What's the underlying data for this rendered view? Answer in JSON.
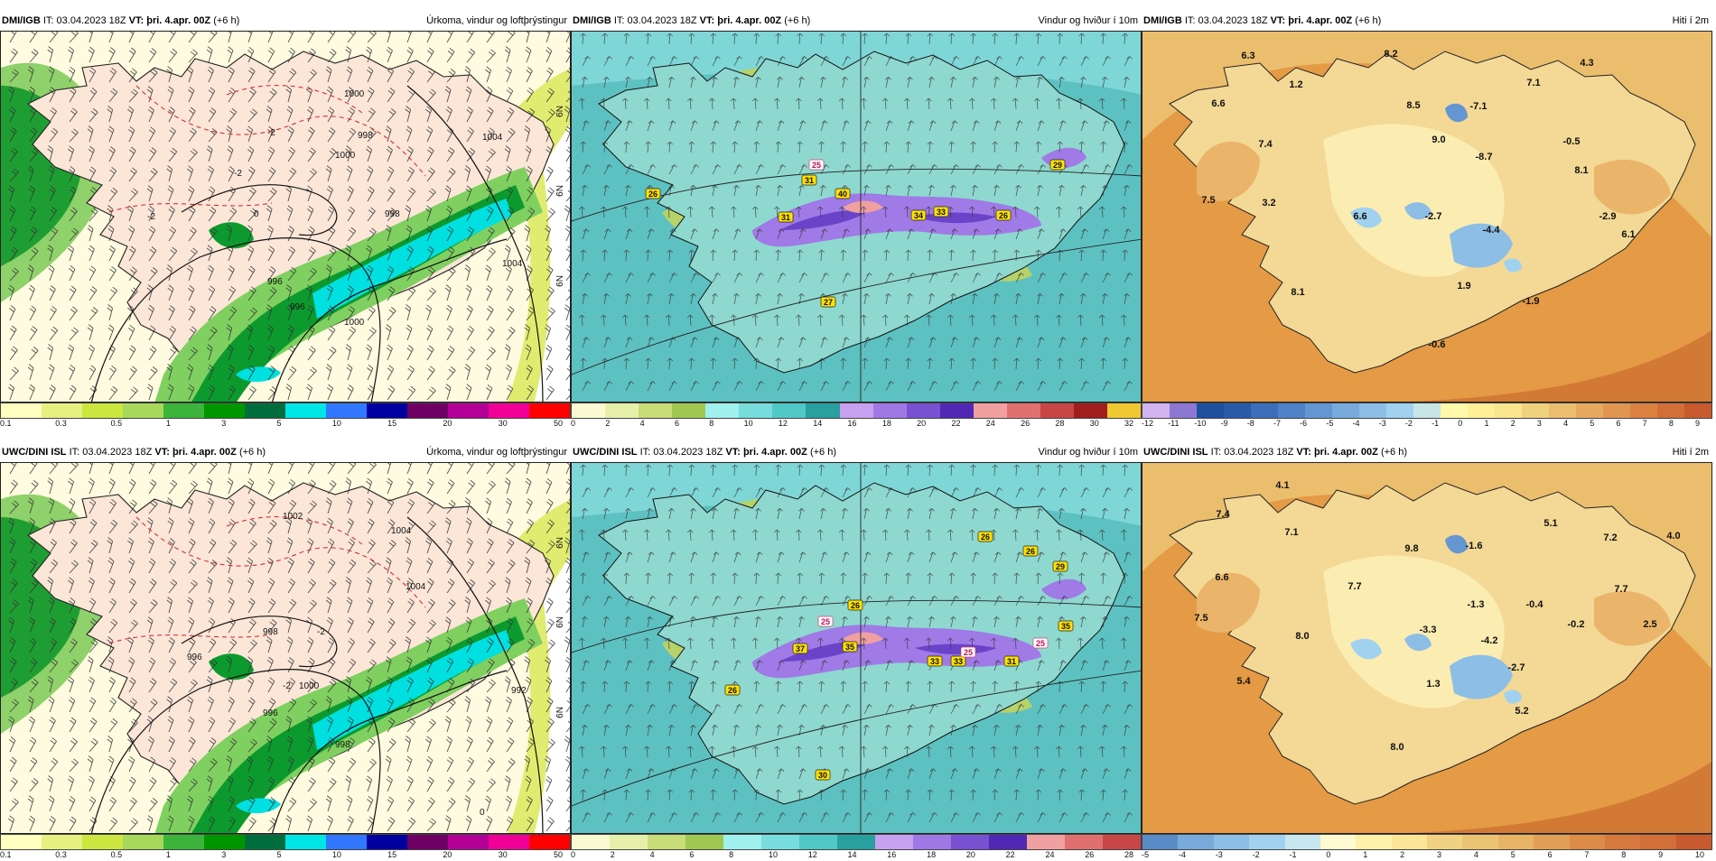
{
  "rows": [
    {
      "panels": [
        {
          "model": "DMI/IGB",
          "it_label": "IT:",
          "it_time": "03.04.2023 18Z",
          "vt_label": "VT:",
          "vt_time": "þri. 4.apr. 00Z",
          "lead": "(+6 h)",
          "title": "Úrkoma, vindur og loftþrýstingur",
          "type": "precip",
          "isobars": [
            "1000",
            "998",
            "998",
            "1000",
            "1004",
            "996",
            "996",
            "1000",
            "1004"
          ],
          "temp_contours": [
            "-2",
            "-2",
            "-2",
            "0"
          ],
          "edge_labels": [
            "N9",
            "N9",
            "N9"
          ],
          "colorbar": {
            "colors": [
              "#ffffc0",
              "#e6f080",
              "#cce640",
              "#a8d85a",
              "#3cb43c",
              "#009600",
              "#006e3c",
              "#00e6e6",
              "#3278ff",
              "#0000a0",
              "#6e0064",
              "#b40096",
              "#f00096",
              "#ff0000"
            ],
            "ticks": [
              "0.1",
              "0.3",
              "0.5",
              "1",
              "3",
              "5",
              "10",
              "15",
              "20",
              "30",
              "50"
            ]
          }
        },
        {
          "model": "DMI/IGB",
          "it_label": "IT:",
          "it_time": "03.04.2023 18Z",
          "vt_label": "VT:",
          "vt_time": "þri. 4.apr. 00Z",
          "lead": "(+6 h)",
          "title": "Vindur og hviður í 10m",
          "type": "wind",
          "gust_labels": [
            "26",
            "25",
            "31",
            "40",
            "31",
            "34",
            "33",
            "26",
            "29",
            "27"
          ],
          "colorbar": {
            "colors": [
              "#fafad2",
              "#e6f0aa",
              "#c8dc78",
              "#a0c850",
              "#a0f0f0",
              "#78dcdc",
              "#50c8c8",
              "#28a0a0",
              "#c8a0f0",
              "#a078e6",
              "#7850d2",
              "#5028b4",
              "#f0a0a0",
              "#e07070",
              "#c84646",
              "#a01e1e",
              "#f0c832"
            ],
            "ticks": [
              "0",
              "2",
              "4",
              "6",
              "8",
              "10",
              "12",
              "14",
              "16",
              "18",
              "20",
              "22",
              "24",
              "26",
              "28",
              "30",
              "32"
            ]
          }
        },
        {
          "model": "DMI/IGB",
          "it_label": "IT:",
          "it_time": "03.04.2023 18Z",
          "vt_label": "VT:",
          "vt_time": "þri. 4.apr. 00Z",
          "lead": "(+6 h)",
          "title": "Hiti í 2m",
          "type": "temp",
          "temps": [
            "6.3",
            "8.2",
            "4.3",
            "1.2",
            "7.1",
            "6.6",
            "8.5",
            "-7.1",
            "9.0",
            "-0.5",
            "7.4",
            "-8.7",
            "8.1",
            "7.5",
            "3.2",
            "6.6",
            "-2.7",
            "-2.9",
            "-4.4",
            "6.1",
            "1.9",
            "8.1",
            "-1.9",
            "-0.6"
          ],
          "colorbar": {
            "colors": [
              "#d2b4f0",
              "#8c78d2",
              "#1e50a0",
              "#285aaa",
              "#3c6eb9",
              "#5082c8",
              "#6496d2",
              "#78aadc",
              "#8cbee6",
              "#a0d2f0",
              "#c8e6e6",
              "#fffaaa",
              "#fff096",
              "#fae68c",
              "#f0d27d",
              "#ebbe6e",
              "#e6aa5f",
              "#e19650",
              "#dc8241",
              "#d26e37",
              "#c85a2d"
            ],
            "ticks": [
              "-12",
              "-11",
              "-10",
              "-9",
              "-8",
              "-7",
              "-6",
              "-5",
              "-4",
              "-3",
              "-2",
              "-1",
              "0",
              "1",
              "2",
              "3",
              "4",
              "5",
              "6",
              "7",
              "8",
              "9"
            ]
          }
        }
      ]
    },
    {
      "panels": [
        {
          "model": "UWC/DINI ISL",
          "it_label": "IT:",
          "it_time": "03.04.2023 18Z",
          "vt_label": "VT:",
          "vt_time": "þri. 4.apr. 00Z",
          "lead": "(+6 h)",
          "title": "Úrkoma, vindur og loftþrýstingur",
          "type": "precip",
          "isobars": [
            "1002",
            "1004",
            "998",
            "996",
            "996",
            "998",
            "1000",
            "1004",
            "992"
          ],
          "temp_contours": [
            "-2",
            "-2",
            "0"
          ],
          "edge_labels": [
            "N9",
            "N9",
            "N9"
          ],
          "colorbar": {
            "colors": [
              "#ffffc0",
              "#e6f080",
              "#cce640",
              "#a8d85a",
              "#3cb43c",
              "#009600",
              "#006e3c",
              "#00e6e6",
              "#3278ff",
              "#0000a0",
              "#6e0064",
              "#b40096",
              "#f00096",
              "#ff0000"
            ],
            "ticks": [
              "0.1",
              "0.3",
              "0.5",
              "1",
              "3",
              "5",
              "10",
              "15",
              "20",
              "30",
              "50"
            ]
          }
        },
        {
          "model": "UWC/DINI ISL",
          "it_label": "IT:",
          "it_time": "03.04.2023 18Z",
          "vt_label": "VT:",
          "vt_time": "þri. 4.apr. 00Z",
          "lead": "(+6 h)",
          "title": "Vindur og hviður í 10m",
          "type": "wind",
          "gust_labels": [
            "26",
            "26",
            "29",
            "26",
            "25",
            "35",
            "37",
            "35",
            "33",
            "33",
            "25",
            "31",
            "25",
            "26",
            "30"
          ],
          "colorbar": {
            "colors": [
              "#fafad2",
              "#e6f0aa",
              "#c8dc78",
              "#a0c850",
              "#a0f0f0",
              "#78dcdc",
              "#50c8c8",
              "#28a0a0",
              "#c8a0f0",
              "#a078e6",
              "#7850d2",
              "#5028b4",
              "#f0a0a0",
              "#e07070",
              "#c84646"
            ],
            "ticks": [
              "0",
              "2",
              "4",
              "6",
              "8",
              "10",
              "12",
              "14",
              "16",
              "18",
              "20",
              "22",
              "24",
              "26",
              "28"
            ]
          }
        },
        {
          "model": "UWC/DINI ISL",
          "it_label": "IT:",
          "it_time": "03.04.2023 18Z",
          "vt_label": "VT:",
          "vt_time": "þri. 4.apr. 00Z",
          "lead": "(+6 h)",
          "title": "Hiti í 2m",
          "type": "temp",
          "temps": [
            "4.1",
            "7.4",
            "5.1",
            "7.1",
            "9.8",
            "-1.6",
            "7.2",
            "4.0",
            "6.6",
            "7.7",
            "-1.3",
            "-0.4",
            "7.7",
            "7.5",
            "-3.3",
            "-0.2",
            "8.0",
            "-4.2",
            "2.5",
            "-2.7",
            "5.4",
            "1.3",
            "5.2",
            "8.0"
          ],
          "colorbar": {
            "colors": [
              "#5a8cc8",
              "#78aadc",
              "#8cbee6",
              "#a0d2f0",
              "#c8e6f0",
              "#fffad2",
              "#fff0aa",
              "#fae696",
              "#f0d282",
              "#ebc373",
              "#e6b464",
              "#e1a055",
              "#dc8c46",
              "#d7783c",
              "#d26e37",
              "#c85a2d"
            ],
            "ticks": [
              "-5",
              "-4",
              "-3",
              "-2",
              "-1",
              "0",
              "1",
              "2",
              "3",
              "4",
              "5",
              "6",
              "7",
              "8",
              "9",
              "10"
            ]
          }
        }
      ]
    }
  ]
}
